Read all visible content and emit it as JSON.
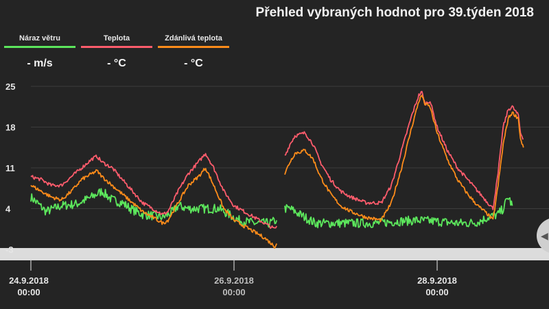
{
  "title": "Přehled vybraných hodnot pro 39.týden 2018",
  "legend": [
    {
      "label": "Náraz větru",
      "value": "- m/s",
      "color": "#5ce65c"
    },
    {
      "label": "Teplota",
      "value": "- °C",
      "color": "#ff5c6c"
    },
    {
      "label": "Zdánlivá teplota",
      "value": "- °C",
      "color": "#ff8c1a"
    }
  ],
  "chart_data": {
    "type": "line",
    "title": "Přehled vybraných hodnot pro 39.týden 2018",
    "x_unit": "days since 24.9.2018 00:00",
    "ylim": [
      -3,
      25
    ],
    "y_ticks": [
      -3,
      4,
      11,
      18,
      25
    ],
    "x_ticks": [
      {
        "day": 0,
        "date": "24.9.2018",
        "time": "00:00"
      },
      {
        "day": 2,
        "date": "26.9.2018",
        "time": "00:00"
      },
      {
        "day": 4,
        "date": "28.9.2018",
        "time": "00:00"
      }
    ],
    "grid": true,
    "series": [
      {
        "name": "Náraz větru",
        "color": "#5ce65c",
        "noise": 0.8,
        "segments": [
          [
            [
              0,
              6
            ],
            [
              0.15,
              3.5
            ],
            [
              0.3,
              4.5
            ],
            [
              0.45,
              4.8
            ],
            [
              0.6,
              6
            ],
            [
              0.7,
              7
            ],
            [
              0.8,
              5.5
            ],
            [
              0.9,
              5
            ],
            [
              1.0,
              3.8
            ],
            [
              1.1,
              3
            ],
            [
              1.2,
              2.8
            ],
            [
              1.3,
              2.5
            ],
            [
              1.4,
              3.5
            ],
            [
              1.45,
              4.5
            ],
            [
              1.55,
              4
            ],
            [
              1.7,
              4
            ],
            [
              1.85,
              4
            ],
            [
              1.95,
              3
            ],
            [
              2.05,
              2
            ],
            [
              2.2,
              1.5
            ],
            [
              2.35,
              1.5
            ],
            [
              2.42,
              2
            ]
          ],
          [
            [
              2.5,
              4
            ],
            [
              2.55,
              4
            ],
            [
              2.65,
              3
            ],
            [
              2.8,
              1.5
            ],
            [
              3.0,
              1.5
            ],
            [
              3.2,
              1.5
            ],
            [
              3.4,
              1.5
            ],
            [
              3.6,
              1.8
            ],
            [
              3.8,
              2
            ],
            [
              4.0,
              1.8
            ],
            [
              4.2,
              1.5
            ],
            [
              4.3,
              1.5
            ],
            [
              4.4,
              1.7
            ],
            [
              4.5,
              2.5
            ],
            [
              4.6,
              3
            ],
            [
              4.65,
              4
            ],
            [
              4.7,
              6
            ],
            [
              4.74,
              4.5
            ]
          ]
        ]
      },
      {
        "name": "Teplota",
        "color": "#ff5c6c",
        "noise": 0.3,
        "segments": [
          [
            [
              0,
              9.5
            ],
            [
              0.1,
              9
            ],
            [
              0.2,
              8
            ],
            [
              0.3,
              8
            ],
            [
              0.4,
              9.5
            ],
            [
              0.5,
              11
            ],
            [
              0.6,
              12.5
            ],
            [
              0.65,
              13
            ],
            [
              0.7,
              12
            ],
            [
              0.8,
              11
            ],
            [
              0.9,
              9
            ],
            [
              1.0,
              7
            ],
            [
              1.1,
              5
            ],
            [
              1.2,
              4
            ],
            [
              1.3,
              3
            ],
            [
              1.35,
              3.5
            ],
            [
              1.45,
              7
            ],
            [
              1.55,
              10
            ],
            [
              1.65,
              12
            ],
            [
              1.72,
              13.5
            ],
            [
              1.8,
              11
            ],
            [
              1.9,
              7
            ],
            [
              2.0,
              4.5
            ],
            [
              2.1,
              3.5
            ],
            [
              2.2,
              2.5
            ],
            [
              2.3,
              1.5
            ],
            [
              2.4,
              0.5
            ],
            [
              2.42,
              1
            ]
          ],
          [
            [
              2.5,
              13
            ],
            [
              2.55,
              15
            ],
            [
              2.6,
              16.5
            ],
            [
              2.7,
              17
            ],
            [
              2.78,
              15
            ],
            [
              2.85,
              12
            ],
            [
              2.95,
              9
            ],
            [
              3.05,
              7
            ],
            [
              3.15,
              6
            ],
            [
              3.3,
              5
            ],
            [
              3.45,
              5
            ],
            [
              3.55,
              8
            ],
            [
              3.65,
              14
            ],
            [
              3.75,
              20
            ],
            [
              3.82,
              23.5
            ],
            [
              3.85,
              24
            ],
            [
              3.88,
              22
            ],
            [
              3.93,
              22.5
            ],
            [
              4.0,
              18
            ],
            [
              4.1,
              14
            ],
            [
              4.2,
              11
            ],
            [
              4.3,
              9
            ],
            [
              4.4,
              7
            ],
            [
              4.5,
              5
            ],
            [
              4.55,
              4
            ],
            [
              4.6,
              10
            ],
            [
              4.65,
              18
            ],
            [
              4.7,
              21
            ],
            [
              4.74,
              21.5
            ],
            [
              4.8,
              20
            ],
            [
              4.82,
              17
            ],
            [
              4.85,
              16
            ]
          ]
        ]
      },
      {
        "name": "Zdánlivá teplota",
        "color": "#ff8c1a",
        "noise": 0.3,
        "segments": [
          [
            [
              0,
              8
            ],
            [
              0.1,
              7
            ],
            [
              0.2,
              6
            ],
            [
              0.3,
              5.5
            ],
            [
              0.4,
              7
            ],
            [
              0.5,
              9
            ],
            [
              0.6,
              10
            ],
            [
              0.65,
              10.5
            ],
            [
              0.7,
              9.5
            ],
            [
              0.8,
              8
            ],
            [
              0.9,
              6.5
            ],
            [
              1.0,
              5
            ],
            [
              1.1,
              3.5
            ],
            [
              1.2,
              2.5
            ],
            [
              1.3,
              1.5
            ],
            [
              1.35,
              2
            ],
            [
              1.45,
              5
            ],
            [
              1.55,
              8
            ],
            [
              1.65,
              9.5
            ],
            [
              1.72,
              11
            ],
            [
              1.8,
              8
            ],
            [
              1.9,
              4
            ],
            [
              2.0,
              2
            ],
            [
              2.1,
              1
            ],
            [
              2.2,
              0
            ],
            [
              2.3,
              -1
            ],
            [
              2.4,
              -2.5
            ],
            [
              2.42,
              -2
            ]
          ],
          [
            [
              2.5,
              10
            ],
            [
              2.55,
              12
            ],
            [
              2.6,
              13.5
            ],
            [
              2.7,
              14
            ],
            [
              2.78,
              12.5
            ],
            [
              2.85,
              9.5
            ],
            [
              2.95,
              6.5
            ],
            [
              3.05,
              4.5
            ],
            [
              3.15,
              3.5
            ],
            [
              3.3,
              2.5
            ],
            [
              3.45,
              2
            ],
            [
              3.55,
              5
            ],
            [
              3.65,
              11
            ],
            [
              3.75,
              18
            ],
            [
              3.82,
              22.5
            ],
            [
              3.85,
              23.5
            ],
            [
              3.88,
              22
            ],
            [
              3.93,
              21.5
            ],
            [
              4.0,
              17
            ],
            [
              4.1,
              12.5
            ],
            [
              4.2,
              9
            ],
            [
              4.3,
              6.5
            ],
            [
              4.4,
              4.5
            ],
            [
              4.5,
              3
            ],
            [
              4.55,
              2
            ],
            [
              4.6,
              8
            ],
            [
              4.65,
              15
            ],
            [
              4.7,
              19.5
            ],
            [
              4.74,
              20.5
            ],
            [
              4.8,
              19.5
            ],
            [
              4.82,
              16
            ],
            [
              4.85,
              14.5
            ]
          ]
        ]
      }
    ]
  }
}
